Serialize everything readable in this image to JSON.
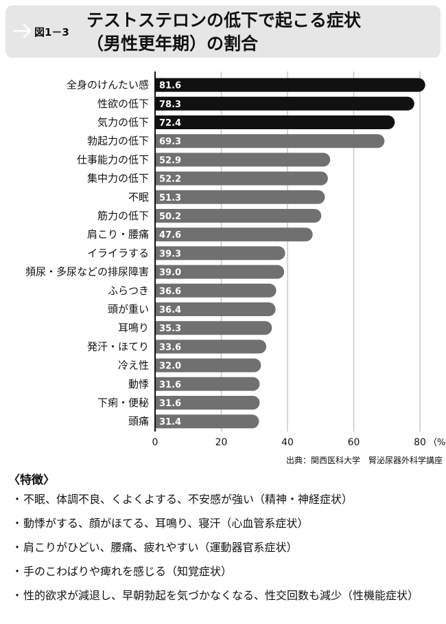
{
  "header": {
    "figure_label": "図1－3",
    "title_line1": "テストステロンの低下で起こる症状",
    "title_line2": "（男性更年期）の割合"
  },
  "chart_data": {
    "type": "bar",
    "orientation": "horizontal",
    "categories": [
      "全身のけんたい感",
      "性欲の低下",
      "気力の低下",
      "勃起力の低下",
      "仕事能力の低下",
      "集中力の低下",
      "不眠",
      "筋力の低下",
      "肩こり・腰痛",
      "イライラする",
      "頻尿・多尿などの排尿障害",
      "ふらつき",
      "頭が重い",
      "耳鳴り",
      "発汗・ほてり",
      "冷え性",
      "動悸",
      "下痢・便秘",
      "頭痛"
    ],
    "values": [
      81.6,
      78.3,
      72.4,
      69.3,
      52.9,
      52.2,
      51.3,
      50.2,
      47.6,
      39.3,
      39.0,
      36.6,
      36.4,
      35.3,
      33.6,
      32.0,
      31.6,
      31.6,
      31.4
    ],
    "value_labels": [
      "81.6",
      "78.3",
      "72.4",
      "69.3",
      "52.9",
      "52.2",
      "51.3",
      "50.2",
      "47.6",
      "39.3",
      "39.0",
      "36.6",
      "36.4",
      "35.3",
      "33.6",
      "32.0",
      "31.6",
      "31.6",
      "31.4"
    ],
    "highlighted_count": 3,
    "colors": {
      "highlight": "#111111",
      "normal": "#707070",
      "grid": "#c8c8c8"
    },
    "xlim": [
      0,
      80
    ],
    "xticks": [
      0,
      20,
      40,
      60,
      80
    ],
    "unit_label": "（%）",
    "grid": true
  },
  "source": "出典：関西医科大学　腎泌尿器外科学講座",
  "features": {
    "heading": "〈特徴〉",
    "bullet": "・",
    "items": [
      "不眠、体調不良、くよくよする、不安感が強い（精神・神経症状）",
      "動悸がする、顔がほてる、耳鳴り、寝汗（心血管系症状）",
      "肩こりがひどい、腰痛、疲れやすい（運動器官系症状）",
      "手のこわばりや痺れを感じる（知覚症状）",
      "性的欲求が減退し、早朝勃起を気づかなくなる、性交回数も減少（性機能症状）"
    ]
  }
}
